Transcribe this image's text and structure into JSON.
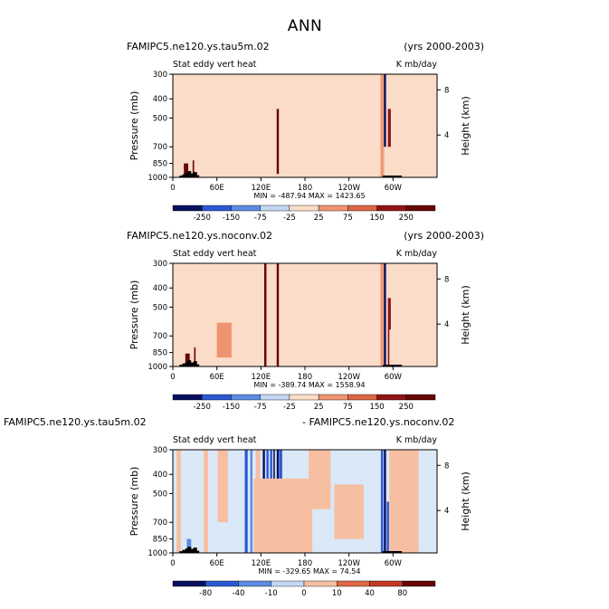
{
  "figure_title": "ANN",
  "colors": {
    "warm_bg": "#fbdcc8",
    "cool_bg": "#dbe8f7",
    "label_red": "#c9402a",
    "label_darkred": "#7d0d0d",
    "label_blue": "#2654c2",
    "label_darkblue": "#0a1f82",
    "topo": "#000000"
  },
  "chart_data": [
    {
      "type": "heatmap",
      "left_title": "FAMIPC5.ne120.ys.tau5m.02",
      "right_title": "(yrs 2000-2003)",
      "subtitle_left": "Stat eddy vert heat",
      "subtitle_right": "K mb/day",
      "ylabel": "Pressure  (mb)",
      "ylabel_right": "Height  (km)",
      "y_ticks": [
        "300",
        "400",
        "500",
        "700",
        "850",
        "1000"
      ],
      "y_right_ticks": [
        "8",
        "4"
      ],
      "x_ticks": [
        "0",
        "60E",
        "120E",
        "180",
        "120W",
        "60W"
      ],
      "stats": "MIN = -487.94   MAX = 1423.65",
      "colorbar_labels": [
        "-250",
        "-150",
        "-75",
        "-25",
        "25",
        "75",
        "150",
        "250"
      ],
      "background": "warm",
      "bands": [
        {
          "lon": 7,
          "lon_width": 5,
          "p_top": 300,
          "p_bottom": 1000,
          "value": -20
        },
        {
          "lon": 18,
          "lon_width": 6,
          "p_top": 850,
          "p_bottom": 1000,
          "value": 300
        },
        {
          "lon": 28,
          "lon_width": 2,
          "p_top": 820,
          "p_bottom": 1000,
          "value": 280
        },
        {
          "lon": 36,
          "lon_width": 5,
          "p_top": 300,
          "p_bottom": 1000,
          "value": -20
        },
        {
          "lon": 112,
          "lon_width": 10,
          "p_top": 300,
          "p_bottom": 1000,
          "value": -20
        },
        {
          "lon": 143,
          "lon_width": 3,
          "p_top": 450,
          "p_bottom": 960,
          "value": 320
        },
        {
          "lon": 152,
          "lon_width": 2,
          "p_top": 300,
          "p_bottom": 1000,
          "value": -15
        },
        {
          "lon": 285,
          "lon_width": 4,
          "p_top": 300,
          "p_bottom": 1000,
          "value": 30
        },
        {
          "lon": 289,
          "lon_width": 3,
          "p_top": 300,
          "p_bottom": 1000,
          "value": -300
        },
        {
          "lon": 295,
          "lon_width": 4,
          "p_top": 450,
          "p_bottom": 1000,
          "value": 200
        },
        {
          "lon": 310,
          "lon_width": 45,
          "p_top": 700,
          "p_bottom": 1000,
          "value": -15
        },
        {
          "lon": 330,
          "lon_width": 10,
          "p_top": 300,
          "p_bottom": 700,
          "value": -15
        }
      ]
    },
    {
      "type": "heatmap",
      "left_title": "FAMIPC5.ne120.ys.noconv.02",
      "right_title": "(yrs 2000-2003)",
      "subtitle_left": "Stat eddy vert heat",
      "subtitle_right": "K mb/day",
      "ylabel": "Pressure  (mb)",
      "ylabel_right": "Height  (km)",
      "y_ticks": [
        "300",
        "400",
        "500",
        "700",
        "850",
        "1000"
      ],
      "y_right_ticks": [
        "8",
        "4"
      ],
      "x_ticks": [
        "0",
        "60E",
        "120E",
        "180",
        "120W",
        "60W"
      ],
      "stats": "MIN = -389.74   MAX = 1558.94",
      "colorbar_labels": [
        "-250",
        "-150",
        "-75",
        "-25",
        "25",
        "75",
        "150",
        "250"
      ],
      "background": "warm",
      "bands": [
        {
          "lon": 7,
          "lon_width": 5,
          "p_top": 300,
          "p_bottom": 1000,
          "value": -20
        },
        {
          "lon": 20,
          "lon_width": 6,
          "p_top": 860,
          "p_bottom": 1000,
          "value": 300
        },
        {
          "lon": 30,
          "lon_width": 2,
          "p_top": 800,
          "p_bottom": 1000,
          "value": 260
        },
        {
          "lon": 40,
          "lon_width": 8,
          "p_top": 300,
          "p_bottom": 1000,
          "value": -20
        },
        {
          "lon": 70,
          "lon_width": 20,
          "p_top": 600,
          "p_bottom": 900,
          "value": 30
        },
        {
          "lon": 112,
          "lon_width": 10,
          "p_top": 300,
          "p_bottom": 1000,
          "value": -20
        },
        {
          "lon": 126,
          "lon_width": 3,
          "p_top": 300,
          "p_bottom": 1000,
          "value": 320
        },
        {
          "lon": 143,
          "lon_width": 3,
          "p_top": 300,
          "p_bottom": 1000,
          "value": 320
        },
        {
          "lon": 150,
          "lon_width": 3,
          "p_top": 300,
          "p_bottom": 1000,
          "value": -20
        },
        {
          "lon": 285,
          "lon_width": 4,
          "p_top": 300,
          "p_bottom": 1000,
          "value": 40
        },
        {
          "lon": 289,
          "lon_width": 3,
          "p_top": 300,
          "p_bottom": 1000,
          "value": -300
        },
        {
          "lon": 295,
          "lon_width": 4,
          "p_top": 450,
          "p_bottom": 1000,
          "value": 200
        },
        {
          "lon": 315,
          "lon_width": 40,
          "p_top": 650,
          "p_bottom": 1000,
          "value": -15
        },
        {
          "lon": 330,
          "lon_width": 10,
          "p_top": 300,
          "p_bottom": 650,
          "value": -15
        }
      ]
    },
    {
      "type": "heatmap",
      "left_title": "FAMIPC5.ne120.ys.tau5m.02",
      "right_title": "- FAMIPC5.ne120.ys.noconv.02",
      "subtitle_left": "Stat eddy vert heat",
      "subtitle_right": "K mb/day",
      "ylabel": "Pressure  (mb)",
      "ylabel_right": "Height  (km)",
      "y_ticks": [
        "300",
        "400",
        "500",
        "700",
        "850",
        "1000"
      ],
      "y_right_ticks": [
        "8",
        "4"
      ],
      "x_ticks": [
        "0",
        "60E",
        "120E",
        "180",
        "120W",
        "60W"
      ],
      "stats": "MIN = -329.65   MAX = 74.54",
      "colorbar_labels": [
        "-80",
        "-40",
        "-10",
        "0",
        "10",
        "40",
        "80"
      ],
      "background": "cool",
      "bands": [
        {
          "lon": 8,
          "lon_width": 6,
          "p_top": 300,
          "p_bottom": 1000,
          "value": 5
        },
        {
          "lon": 22,
          "lon_width": 6,
          "p_top": 850,
          "p_bottom": 1000,
          "value": -20
        },
        {
          "lon": 45,
          "lon_width": 6,
          "p_top": 300,
          "p_bottom": 1000,
          "value": 5
        },
        {
          "lon": 68,
          "lon_width": 14,
          "p_top": 300,
          "p_bottom": 700,
          "value": 5
        },
        {
          "lon": 100,
          "lon_width": 4,
          "p_top": 300,
          "p_bottom": 1000,
          "value": -45
        },
        {
          "lon": 107,
          "lon_width": 3,
          "p_top": 300,
          "p_bottom": 1000,
          "value": -25
        },
        {
          "lon": 116,
          "lon_width": 6,
          "p_top": 300,
          "p_bottom": 1000,
          "value": 5
        },
        {
          "lon": 124,
          "lon_width": 3,
          "p_top": 300,
          "p_bottom": 1000,
          "value": -120
        },
        {
          "lon": 129,
          "lon_width": 3,
          "p_top": 300,
          "p_bottom": 1000,
          "value": -45
        },
        {
          "lon": 134,
          "lon_width": 3,
          "p_top": 300,
          "p_bottom": 1000,
          "value": -45
        },
        {
          "lon": 138,
          "lon_width": 2,
          "p_top": 300,
          "p_bottom": 1000,
          "value": -120
        },
        {
          "lon": 143,
          "lon_width": 3,
          "p_top": 300,
          "p_bottom": 1000,
          "value": -120
        },
        {
          "lon": 147,
          "lon_width": 4,
          "p_top": 300,
          "p_bottom": 1000,
          "value": -45
        },
        {
          "lon": 150,
          "lon_width": 80,
          "p_top": 420,
          "p_bottom": 1000,
          "value": 5
        },
        {
          "lon": 200,
          "lon_width": 30,
          "p_top": 300,
          "p_bottom": 600,
          "value": 5
        },
        {
          "lon": 240,
          "lon_width": 40,
          "p_top": 450,
          "p_bottom": 850,
          "value": 5
        },
        {
          "lon": 285,
          "lon_width": 3,
          "p_top": 300,
          "p_bottom": 1000,
          "value": -45
        },
        {
          "lon": 289,
          "lon_width": 3,
          "p_top": 300,
          "p_bottom": 1000,
          "value": -120
        },
        {
          "lon": 293,
          "lon_width": 3,
          "p_top": 550,
          "p_bottom": 1000,
          "value": -45
        },
        {
          "lon": 315,
          "lon_width": 40,
          "p_top": 300,
          "p_bottom": 1000,
          "value": 5
        }
      ]
    }
  ]
}
